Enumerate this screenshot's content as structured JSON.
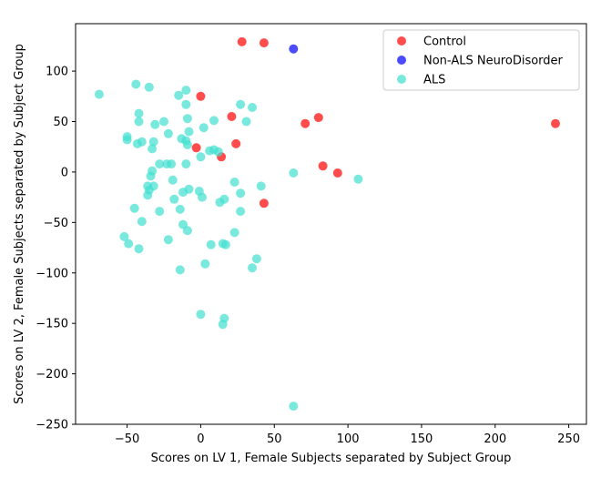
{
  "chart_data": {
    "type": "scatter",
    "xlabel": "Scores on LV 1, Female Subjects separated by Subject Group",
    "ylabel": "Scores on LV 2, Female Subjects separated by Subject Group",
    "xlim": [
      -85,
      262
    ],
    "ylim": [
      -250,
      147
    ],
    "xticks": [
      -50,
      0,
      50,
      100,
      150,
      200,
      250
    ],
    "yticks": [
      -250,
      -200,
      -150,
      -100,
      -50,
      0,
      50,
      100
    ],
    "grid": false,
    "legend_position": "top-right",
    "series": [
      {
        "name": "Control",
        "color": "#ff0000",
        "points": [
          [
            28,
            129
          ],
          [
            43,
            128
          ],
          [
            0,
            75
          ],
          [
            21,
            55
          ],
          [
            71,
            48
          ],
          [
            80,
            54
          ],
          [
            241,
            48
          ],
          [
            -3,
            24
          ],
          [
            24,
            28
          ],
          [
            14,
            15
          ],
          [
            83,
            6
          ],
          [
            93,
            -1
          ],
          [
            43,
            -31
          ]
        ]
      },
      {
        "name": "Non-ALS NeuroDisorder",
        "color": "#0000ff",
        "points": [
          [
            63,
            122
          ]
        ]
      },
      {
        "name": "ALS",
        "color": "#40e0d0",
        "points": [
          [
            -69,
            77
          ],
          [
            -44,
            87
          ],
          [
            -35,
            84
          ],
          [
            -15,
            76
          ],
          [
            -10,
            81
          ],
          [
            -10,
            67
          ],
          [
            27,
            67
          ],
          [
            35,
            64
          ],
          [
            -42,
            58
          ],
          [
            -42,
            50
          ],
          [
            -31,
            47
          ],
          [
            -25,
            50
          ],
          [
            -9,
            53
          ],
          [
            9,
            51
          ],
          [
            31,
            50
          ],
          [
            -50,
            35
          ],
          [
            -50,
            32
          ],
          [
            -40,
            30
          ],
          [
            -43,
            28
          ],
          [
            -32,
            30
          ],
          [
            -22,
            38
          ],
          [
            -8,
            40
          ],
          [
            2,
            44
          ],
          [
            -13,
            33
          ],
          [
            -10,
            31
          ],
          [
            -9,
            27
          ],
          [
            -33,
            23
          ],
          [
            6,
            21
          ],
          [
            9,
            22
          ],
          [
            12,
            20
          ],
          [
            0,
            15
          ],
          [
            -28,
            8
          ],
          [
            -23,
            8
          ],
          [
            -20,
            8
          ],
          [
            -10,
            8
          ],
          [
            -33,
            1
          ],
          [
            -34,
            -4
          ],
          [
            -19,
            -8
          ],
          [
            -32,
            -14
          ],
          [
            -36,
            -14
          ],
          [
            -35,
            -18
          ],
          [
            -36,
            -23
          ],
          [
            -8,
            -17
          ],
          [
            -12,
            -20
          ],
          [
            -1,
            -19
          ],
          [
            1,
            -25
          ],
          [
            -18,
            -27
          ],
          [
            16,
            -27
          ],
          [
            23,
            -10
          ],
          [
            27,
            -21
          ],
          [
            13,
            -30
          ],
          [
            41,
            -14
          ],
          [
            63,
            -1
          ],
          [
            107,
            -7
          ],
          [
            -45,
            -36
          ],
          [
            -28,
            -39
          ],
          [
            -14,
            -37
          ],
          [
            27,
            -39
          ],
          [
            -40,
            -49
          ],
          [
            -12,
            -52
          ],
          [
            -9,
            -58
          ],
          [
            -22,
            -67
          ],
          [
            23,
            -60
          ],
          [
            -52,
            -64
          ],
          [
            -49,
            -71
          ],
          [
            -42,
            -76
          ],
          [
            7,
            -72
          ],
          [
            15,
            -71
          ],
          [
            17,
            -72
          ],
          [
            38,
            -86
          ],
          [
            3,
            -91
          ],
          [
            35,
            -95
          ],
          [
            -14,
            -97
          ],
          [
            0,
            -141
          ],
          [
            16,
            -145
          ],
          [
            15,
            -151
          ],
          [
            63,
            -232
          ]
        ]
      }
    ]
  }
}
